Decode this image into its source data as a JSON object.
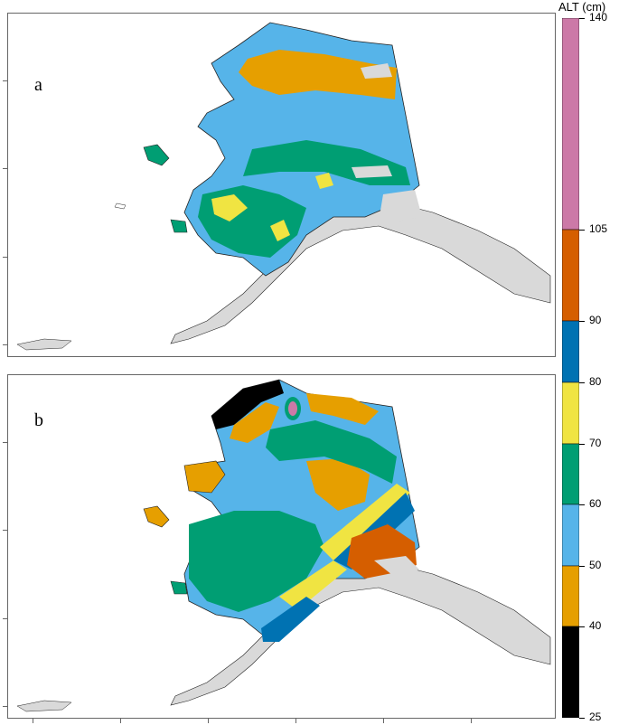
{
  "panels": [
    {
      "id": "a",
      "label": "a"
    },
    {
      "id": "b",
      "label": "b"
    }
  ],
  "legend": {
    "title": "ALT (cm)",
    "breaks": [
      {
        "value": "140"
      },
      {
        "value": "105"
      },
      {
        "value": "90"
      },
      {
        "value": "80"
      },
      {
        "value": "70"
      },
      {
        "value": "60"
      },
      {
        "value": "50"
      },
      {
        "value": "40"
      },
      {
        "value": "25"
      }
    ],
    "bins": [
      {
        "range": "105-140",
        "color": "#cc79a7"
      },
      {
        "range": "90-105",
        "color": "#d55e00"
      },
      {
        "range": "80-90",
        "color": "#0072b2"
      },
      {
        "range": "70-80",
        "color": "#f0e442"
      },
      {
        "range": "60-70",
        "color": "#009e73"
      },
      {
        "range": "50-60",
        "color": "#56b4e9"
      },
      {
        "range": "40-50",
        "color": "#e69f00"
      },
      {
        "range": "25-40",
        "color": "#000000"
      }
    ],
    "nodata_color": "#d9d9d9"
  }
}
